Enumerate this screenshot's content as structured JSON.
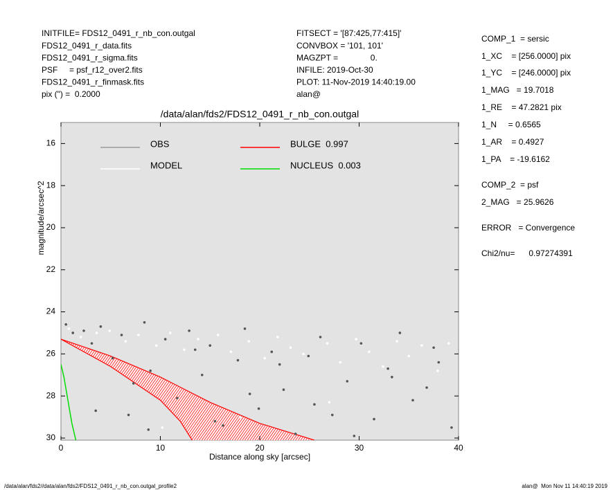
{
  "header": {
    "left": [
      "INITFILE= FDS12_0491_r_nb_con.outgal",
      "FDS12_0491_r_data.fits",
      "FDS12_0491_r_sigma.fits",
      "PSF     = psf_r12_over2.fits",
      "FDS12_0491_r_finmask.fits",
      "pix (\") =  0.2000"
    ],
    "middle": [
      "FITSECT = '[87:425,77:415]'",
      "CONVBOX = '101, 101'",
      "MAGZPT =              0.",
      "INFILE: 2019-Oct-30",
      "PLOT: 11-Nov-2019 14:40:19.00",
      "alan@"
    ],
    "right": [
      "COMP_1  = sersic",
      "1_XC    = [256.0000] pix",
      "1_YC    = [246.0000] pix",
      "1_MAG   = 19.7018",
      "1_RE    = 47.2821 pix",
      "1_N     = 0.6565",
      "1_AR    = 0.4927",
      "1_PA    = -19.6162",
      "COMP_2  = psf",
      "2_MAG   = 25.9626",
      "ERROR   = Convergence",
      "Chi2/nu=      0.97274391"
    ]
  },
  "footer": {
    "left": "/data/alan/fds2//data/alan/fds2/FDS12_0491_r_nb_con.outgal_profile2",
    "right": "alan@  Mon Nov 11 14:40:19 2019"
  },
  "chart_data": {
    "type": "scatter",
    "title": "/data/alan/fds2/FDS12_0491_r_nb_con.outgal",
    "x_label": "Distance along sky [arcsec]",
    "y_label": "magnitude/arcsec^2",
    "xlim": [
      0,
      40
    ],
    "xticks": [
      0,
      10,
      20,
      30,
      40
    ],
    "ylim": [
      30.1,
      15
    ],
    "yticks": [
      16,
      18,
      20,
      22,
      24,
      26,
      28,
      30
    ],
    "series": [
      {
        "name": "OBS",
        "color": "#555555",
        "kind": "points",
        "x": [
          0.5,
          1.2,
          2.3,
          3.1,
          4.0,
          5.2,
          6.1,
          7.3,
          8.4,
          9.0,
          10.5,
          11.7,
          12.9,
          14.2,
          15.0,
          16.3,
          17.8,
          18.5,
          19.9,
          21.2,
          22.4,
          23.6,
          24.9,
          26.1,
          27.3,
          28.8,
          30.2,
          31.5,
          32.9,
          34.1,
          35.4,
          36.8,
          38.0,
          39.3,
          3.5,
          8.8,
          13.5,
          19.0,
          25.5,
          33.3,
          37.5,
          29.5,
          22.0,
          15.5,
          6.8
        ],
        "values": [
          24.6,
          25.0,
          24.9,
          25.5,
          24.7,
          26.2,
          25.1,
          27.4,
          24.5,
          26.8,
          25.3,
          28.1,
          24.9,
          27.0,
          25.6,
          29.4,
          26.3,
          24.8,
          28.6,
          25.9,
          27.7,
          29.8,
          26.1,
          25.2,
          28.9,
          27.3,
          25.5,
          29.1,
          26.7,
          25.0,
          28.2,
          27.6,
          26.4,
          29.5,
          28.7,
          29.6,
          25.8,
          27.9,
          28.4,
          27.1,
          25.7,
          29.9,
          26.5,
          29.2,
          28.9
        ]
      },
      {
        "name": "MODEL",
        "color": "#ffffff",
        "kind": "points",
        "x": [
          0.8,
          2.0,
          3.6,
          4.9,
          6.5,
          7.8,
          9.6,
          11.0,
          12.4,
          13.8,
          15.8,
          17.1,
          18.9,
          20.5,
          21.8,
          23.1,
          24.4,
          26.8,
          28.1,
          29.7,
          31.0,
          32.4,
          33.8,
          35.0,
          36.3,
          37.9,
          39.0,
          10.2,
          18.0,
          27.0
        ],
        "values": [
          24.8,
          25.2,
          25.0,
          24.9,
          25.4,
          25.1,
          25.6,
          25.0,
          25.8,
          25.3,
          25.1,
          25.9,
          25.4,
          26.2,
          25.2,
          25.7,
          26.0,
          25.5,
          26.4,
          25.3,
          25.9,
          26.6,
          25.4,
          26.1,
          25.6,
          26.8,
          25.5,
          29.5,
          29.0,
          28.3
        ]
      },
      {
        "name": "BULGE  0.997",
        "color": "#ff0000",
        "kind": "band",
        "x": [
          0,
          5,
          10,
          15,
          20,
          25.5
        ],
        "values": [
          25.3,
          26.1,
          27.1,
          28.3,
          29.3,
          30.1
        ],
        "x2": [
          0,
          5,
          10,
          12,
          13.2
        ],
        "values2": [
          25.3,
          26.6,
          28.2,
          29.2,
          30.1
        ]
      },
      {
        "name": "NUCLEUS  0.003",
        "color": "#00dd00",
        "kind": "line",
        "x": [
          0,
          0.3,
          0.7,
          1.1,
          1.5
        ],
        "values": [
          26.5,
          27.1,
          28.2,
          29.3,
          30.1
        ]
      }
    ]
  }
}
